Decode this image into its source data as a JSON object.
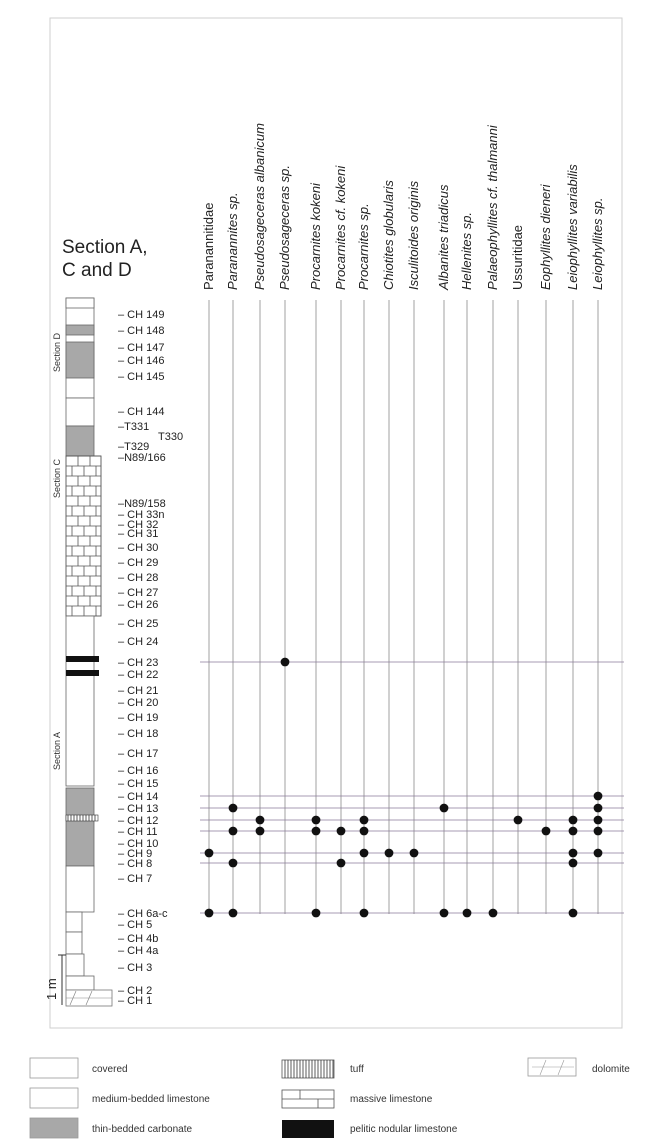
{
  "title": "Section A,\nC and D",
  "title_lines": [
    "Section A,",
    "C and D"
  ],
  "section_labels": [
    "Section D",
    "Section C",
    "Section A"
  ],
  "scale_label": "1 m",
  "taxa": [
    {
      "name": "Paranannitidae",
      "italic": false
    },
    {
      "name": "Paranannites sp.",
      "italic": true
    },
    {
      "name": "Pseudosageceras albanicum",
      "italic": true
    },
    {
      "name": "Pseudosageceras sp.",
      "italic": true
    },
    {
      "name": "Procarnites kokeni",
      "italic": true
    },
    {
      "name": "Procarnites cf. kokeni",
      "italic": true
    },
    {
      "name": "Procarnites sp.",
      "italic": true
    },
    {
      "name": "Chiotites globularis",
      "italic": true
    },
    {
      "name": "Isculitoides originis",
      "italic": true
    },
    {
      "name": "Albanites triadicus",
      "italic": true
    },
    {
      "name": "Hellenites sp.",
      "italic": true
    },
    {
      "name": "Palaeophyllites cf. thalmanni",
      "italic": true
    },
    {
      "name": "Ussuritidae",
      "italic": false
    },
    {
      "name": "Eophyllites dieneri",
      "italic": true
    },
    {
      "name": "Leiophyllites variabilis",
      "italic": true
    },
    {
      "name": "Leiophyllites sp.",
      "italic": true
    }
  ],
  "samples": [
    "CH 149",
    "CH 148",
    "CH 147",
    "CH 146",
    "CH 145",
    "CH 144",
    "T331",
    "T330",
    "T329",
    "N89/166",
    "N89/158",
    "CH 33n",
    "CH 32",
    "CH 31",
    "CH 30",
    "CH 29",
    "CH 28",
    "CH 27",
    "CH 26",
    "CH 25",
    "CH 24",
    "CH 23",
    "CH 22",
    "CH 21",
    "CH 20",
    "CH 19",
    "CH 18",
    "CH 17",
    "CH 16",
    "CH 15",
    "CH 14",
    "CH 13",
    "CH 12",
    "CH 11",
    "CH 10",
    "CH 9",
    "CH 8",
    "CH 7",
    "CH 6a-c",
    "CH 5",
    "CH 4b",
    "CH 4a",
    "CH 3",
    "CH 2",
    "CH 1"
  ],
  "occurrences": [
    {
      "sample": "CH 23",
      "taxa": [
        3
      ]
    },
    {
      "sample": "CH 14",
      "taxa": [
        15
      ]
    },
    {
      "sample": "CH 13",
      "taxa": [
        1,
        9,
        15
      ]
    },
    {
      "sample": "CH 12",
      "taxa": [
        2,
        4,
        6,
        12,
        14,
        15
      ]
    },
    {
      "sample": "CH 11",
      "taxa": [
        1,
        2,
        4,
        5,
        6,
        13,
        14,
        15
      ]
    },
    {
      "sample": "CH 9",
      "taxa": [
        0,
        6,
        7,
        8,
        14,
        15
      ]
    },
    {
      "sample": "CH 8",
      "taxa": [
        1,
        5,
        14
      ]
    },
    {
      "sample": "CH 6a-c",
      "taxa": [
        0,
        1,
        4,
        6,
        9,
        10,
        11,
        14
      ]
    }
  ],
  "legend": [
    {
      "label": "covered",
      "pattern": "covered"
    },
    {
      "label": "tuff",
      "pattern": "tuff"
    },
    {
      "label": "dolomite",
      "pattern": "dolomite"
    },
    {
      "label": "medium-bedded limestone",
      "pattern": "medium"
    },
    {
      "label": "massive limestone",
      "pattern": "massive"
    },
    {
      "label": "thin-bedded carbonate",
      "pattern": "thin"
    },
    {
      "label": "pelitic nodular limestone",
      "pattern": "pelitic"
    }
  ],
  "colors": {
    "thin_bedded": "#a8a8a8",
    "pelitic": "#111111",
    "line": "#555555",
    "horizontal_line": "#8a7a9a"
  }
}
